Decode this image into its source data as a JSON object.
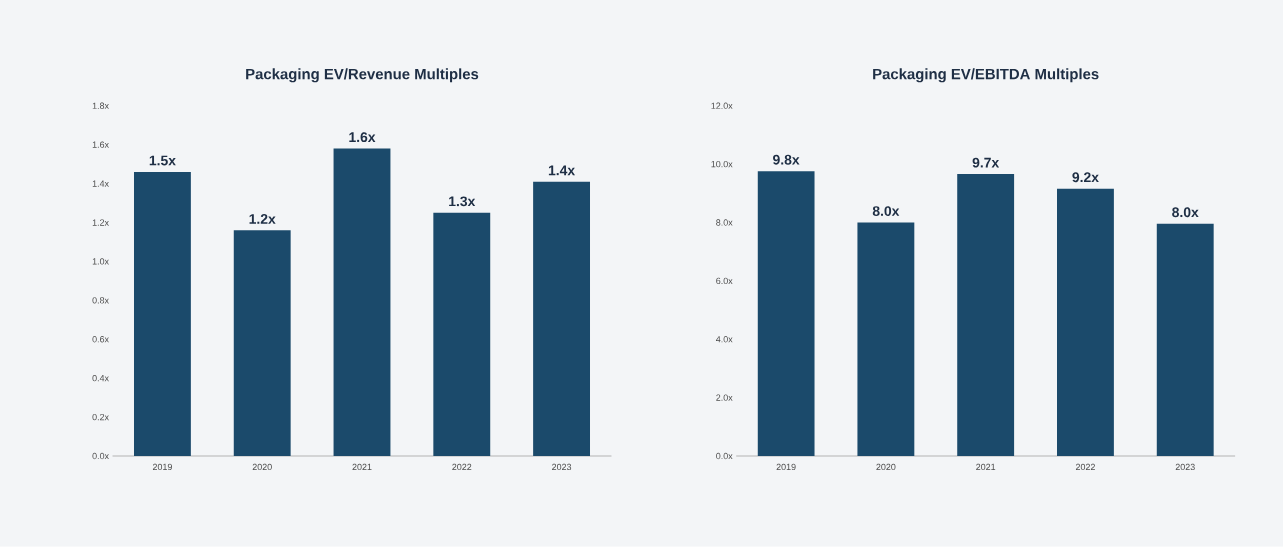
{
  "chart_data": [
    {
      "type": "bar",
      "title": "Packaging EV/Revenue Multiples",
      "categories": [
        "2019",
        "2020",
        "2021",
        "2022",
        "2023"
      ],
      "color": "#1b4a6b",
      "values": [
        1.46,
        1.16,
        1.58,
        1.25,
        1.41
      ],
      "value_labels": [
        "1.5x",
        "1.2x",
        "1.6x",
        "1.3x",
        "1.4x"
      ],
      "ylim": [
        0,
        1.8
      ],
      "yticks": [
        {
          "value": 0,
          "label": "0.0x"
        },
        {
          "value": 0.2,
          "label": "0.2x"
        },
        {
          "value": 0.4,
          "label": "0.4x"
        },
        {
          "value": 0.6,
          "label": "0.6x"
        },
        {
          "value": 0.8,
          "label": "0.8x"
        },
        {
          "value": 1.0,
          "label": "1.0x"
        },
        {
          "value": 1.2,
          "label": "1.2x"
        },
        {
          "value": 1.4,
          "label": "1.4x"
        },
        {
          "value": 1.6,
          "label": "1.6x"
        },
        {
          "value": 1.8,
          "label": "1.8x"
        }
      ],
      "grid": false
    },
    {
      "type": "bar",
      "title": "Packaging EV/EBITDA Multiples",
      "categories": [
        "2019",
        "2020",
        "2021",
        "2022",
        "2023"
      ],
      "color": "#1b4a6b",
      "values": [
        9.76,
        8.0,
        9.66,
        9.16,
        7.96
      ],
      "value_labels": [
        "9.8x",
        "8.0x",
        "9.7x",
        "9.2x",
        "8.0x"
      ],
      "ylim": [
        0,
        12
      ],
      "yticks": [
        {
          "value": 0,
          "label": "0.0x"
        },
        {
          "value": 2,
          "label": "2.0x"
        },
        {
          "value": 4,
          "label": "4.0x"
        },
        {
          "value": 6,
          "label": "6.0x"
        },
        {
          "value": 8,
          "label": "8.0x"
        },
        {
          "value": 10,
          "label": "10.0x"
        },
        {
          "value": 12,
          "label": "12.0x"
        }
      ],
      "grid": false
    }
  ]
}
